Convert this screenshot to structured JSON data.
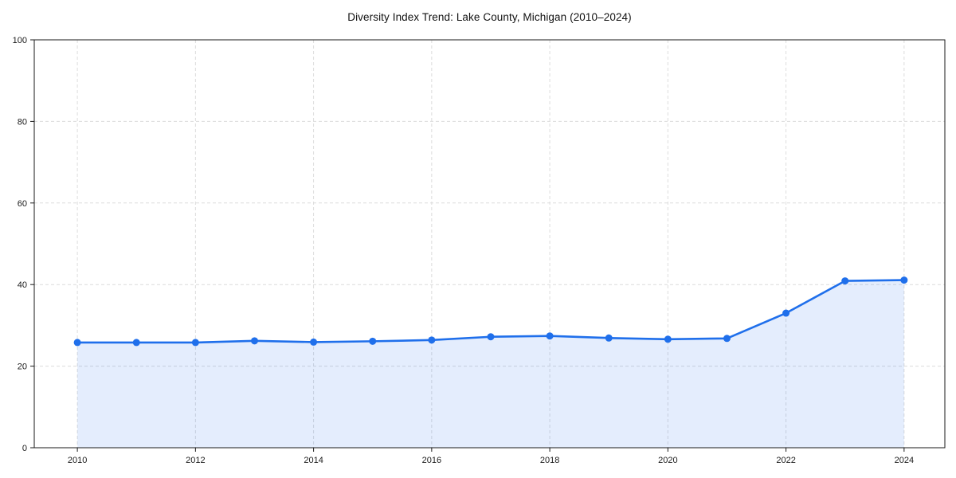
{
  "chart_data": {
    "type": "area",
    "title": "Diversity Index Trend: Lake County, Michigan (2010–2024)",
    "series_name": "Diversity Index",
    "x": [
      2010,
      2011,
      2012,
      2013,
      2014,
      2015,
      2016,
      2017,
      2018,
      2019,
      2020,
      2021,
      2022,
      2023,
      2024
    ],
    "values": [
      25.8,
      25.8,
      25.8,
      26.2,
      25.9,
      26.1,
      26.4,
      27.2,
      27.4,
      26.9,
      26.6,
      26.8,
      33.0,
      40.9,
      41.1
    ],
    "xlabel": "",
    "ylabel": "",
    "xlim": [
      2009.27,
      2024.69
    ],
    "ylim": [
      0,
      100
    ],
    "xticks": [
      2010,
      2012,
      2014,
      2016,
      2018,
      2020,
      2022,
      2024
    ],
    "yticks": [
      0,
      20,
      40,
      60,
      80,
      100
    ],
    "grid": "on",
    "grid_style": "dashed",
    "legend_position": "none",
    "colors": {
      "line": "#1f6feb",
      "marker": "#1f6feb",
      "fill": "#1f6feb",
      "fill_opacity": "0.12",
      "grid": "#dcdcdc",
      "spine": "#1a1a1a",
      "tick_label": "#1a1a1a",
      "title": "#111111",
      "background": "#ffffff"
    }
  }
}
